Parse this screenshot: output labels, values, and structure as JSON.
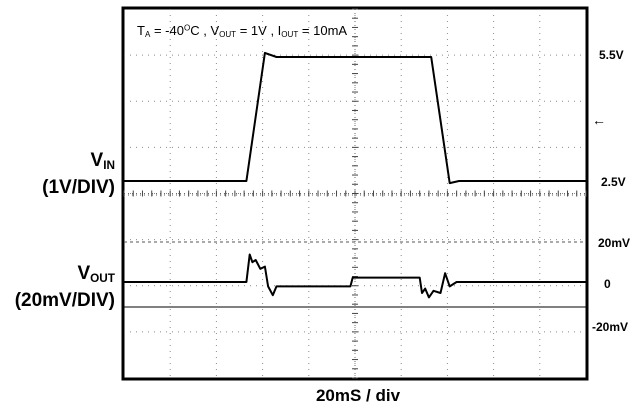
{
  "chart_data": {
    "type": "line",
    "title": {
      "ta_prefix": "T",
      "ta_sub": "A",
      "ta_value": " = -40",
      "ta_sup": "O",
      "ta_unit": "C , ",
      "vout_prefix": "V",
      "vout_sub": "OUT",
      "vout_value": " = 1V , ",
      "iout_prefix": "I",
      "iout_sub": "OUT",
      "iout_value": " = 10mA"
    },
    "x_axis_label": "20mS / div",
    "x_divisions": 10,
    "y_divisions": 8,
    "channels": [
      {
        "id": "vin",
        "label_main": "V",
        "label_sub": "IN",
        "label_scale": "(1V/DIV)",
        "ref_labels": [
          "5.5V",
          "2.5V"
        ],
        "x": [
          0,
          2.65,
          3.05,
          3.3,
          6.65,
          7.05,
          7.25,
          10
        ],
        "y": [
          2.5,
          2.5,
          5.6,
          5.5,
          5.5,
          2.45,
          2.5,
          2.5
        ]
      },
      {
        "id": "vout",
        "label_main": "V",
        "label_sub": "OUT",
        "label_scale": "(20mV/DIV)",
        "ref_labels": [
          "20mV",
          "0",
          "-20mV"
        ],
        "x": [
          0,
          2.65,
          2.72,
          2.78,
          2.85,
          2.95,
          3.05,
          3.12,
          3.22,
          3.3,
          4.9,
          4.95,
          6.4,
          6.45,
          6.52,
          6.6,
          6.7,
          6.85,
          6.95,
          7.05,
          7.2,
          10
        ],
        "y": [
          0,
          0,
          25,
          18,
          20,
          12,
          14,
          -4,
          -12,
          -4,
          -4,
          4,
          4,
          -10,
          -6,
          -14,
          -8,
          -10,
          8,
          -4,
          0,
          0
        ]
      }
    ]
  }
}
